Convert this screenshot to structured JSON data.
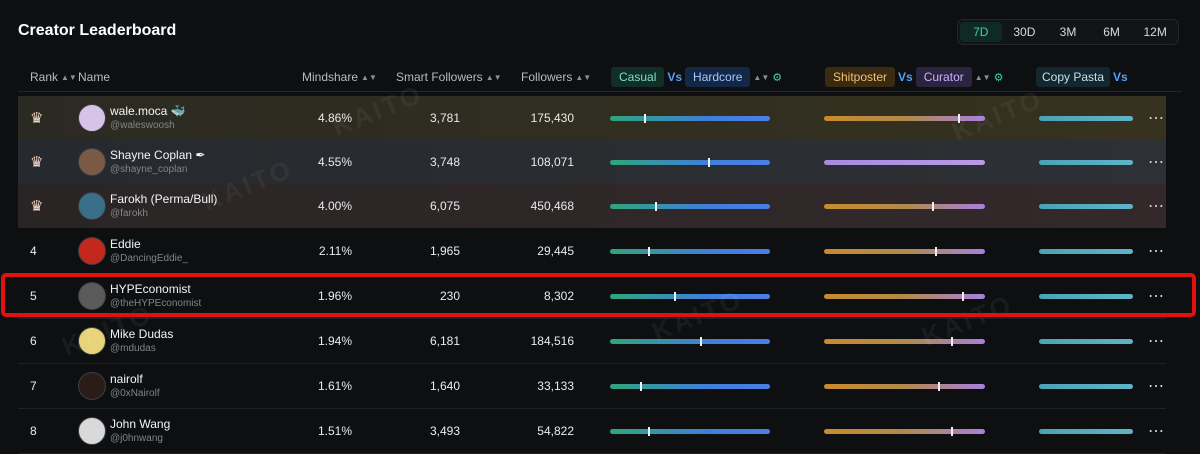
{
  "title": "Creator Leaderboard",
  "ranges": [
    "7D",
    "30D",
    "3M",
    "6M",
    "12M"
  ],
  "active_range": "7D",
  "headers": {
    "rank": "Rank",
    "name": "Name",
    "mindshare": "Mindshare",
    "smart_followers": "Smart Followers",
    "followers": "Followers",
    "casual": "Casual",
    "vs": "Vs",
    "hardcore": "Hardcore",
    "shitposter": "Shitposter",
    "curator": "Curator",
    "copy_pasta": "Copy Pasta"
  },
  "watermark": "KAITO",
  "rows": [
    {
      "rank": "",
      "medal": "crown-icon",
      "name": "wale.moca",
      "badge": "🐳",
      "handle": "@waleswoosh",
      "mindshare": "4.86%",
      "smart_followers": "3,781",
      "followers": "175,430",
      "casual_hardcore": 0.21,
      "shitposter_curator": 0.83
    },
    {
      "rank": "",
      "medal": "crown-icon",
      "name": "Shayne Coplan",
      "badge": "✒",
      "handle": "@shayne_coplan",
      "mindshare": "4.55%",
      "smart_followers": "3,748",
      "followers": "108,071",
      "casual_hardcore": 0.61,
      "shitposter_curator": 0.0
    },
    {
      "rank": "",
      "medal": "crown-icon",
      "name": "Farokh (Perma/Bull)",
      "badge": "",
      "handle": "@farokh",
      "mindshare": "4.00%",
      "smart_followers": "6,075",
      "followers": "450,468",
      "casual_hardcore": 0.28,
      "shitposter_curator": 0.67
    },
    {
      "rank": "4",
      "medal": "",
      "name": "Eddie",
      "badge": "",
      "handle": "@DancingEddie_",
      "mindshare": "2.11%",
      "smart_followers": "1,965",
      "followers": "29,445",
      "casual_hardcore": 0.24,
      "shitposter_curator": 0.69
    },
    {
      "rank": "5",
      "medal": "",
      "name": "HYPEconomist",
      "badge": "",
      "handle": "@theHYPEconomist",
      "mindshare": "1.96%",
      "smart_followers": "230",
      "followers": "8,302",
      "casual_hardcore": 0.4,
      "shitposter_curator": 0.86
    },
    {
      "rank": "6",
      "medal": "",
      "name": "Mike Dudas",
      "badge": "",
      "handle": "@mdudas",
      "mindshare": "1.94%",
      "smart_followers": "6,181",
      "followers": "184,516",
      "casual_hardcore": 0.56,
      "shitposter_curator": 0.79
    },
    {
      "rank": "7",
      "medal": "",
      "name": "nairolf",
      "badge": "",
      "handle": "@0xNairolf",
      "mindshare": "1.61%",
      "smart_followers": "1,640",
      "followers": "33,133",
      "casual_hardcore": 0.19,
      "shitposter_curator": 0.71
    },
    {
      "rank": "8",
      "medal": "",
      "name": "John Wang",
      "badge": "",
      "handle": "@j0hnwang",
      "mindshare": "1.51%",
      "smart_followers": "3,493",
      "followers": "54,822",
      "casual_hardcore": 0.24,
      "shitposter_curator": 0.79
    }
  ],
  "colors": {
    "accent": "#3fd0a8",
    "highlight_border": "#e0110f",
    "avatars": [
      "#d8c3e8",
      "#7a5a44",
      "#3a6f8a",
      "#c4281c",
      "#5a5a5a",
      "#e9d37a",
      "#2a1d18",
      "#d9d9d9"
    ]
  }
}
